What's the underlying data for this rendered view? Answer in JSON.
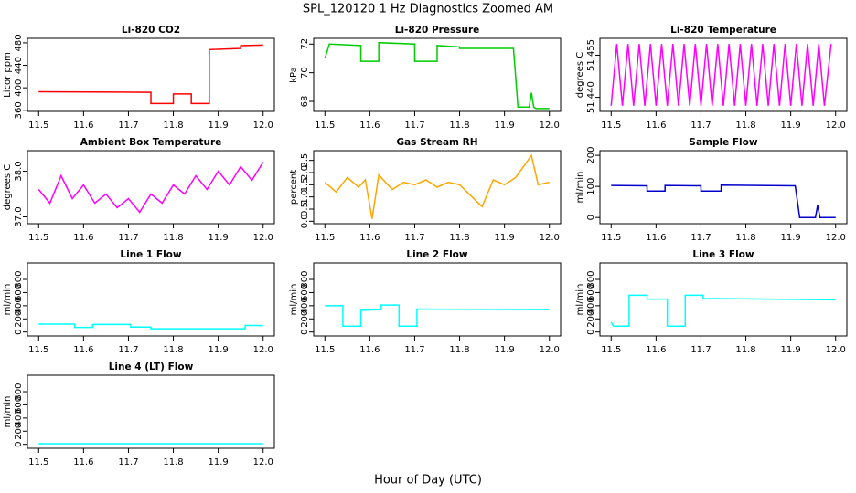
{
  "title": "SPL_120120  1 Hz Diagnostics Zoomed AM",
  "xlabel": "Hour of Day (UTC)",
  "chart_data": [
    {
      "type": "line",
      "title": "Li-820 CO2",
      "ylabel": "Licor ppm",
      "color": "#ff0000",
      "x": [
        11.5,
        11.75,
        11.75,
        11.8,
        11.8,
        11.84,
        11.84,
        11.88,
        11.88,
        11.95,
        11.95,
        12.0
      ],
      "values": [
        393,
        392,
        372,
        372,
        389,
        389,
        372,
        372,
        468,
        470,
        475,
        476
      ],
      "xlim": [
        11.475,
        12.025
      ],
      "xticks": [
        11.5,
        11.6,
        11.7,
        11.8,
        11.9,
        {
          "value": 12,
          "label": "12.0"
        }
      ],
      "ylim": [
        358,
        488
      ],
      "yticks": [
        360,
        400,
        440,
        480
      ]
    },
    {
      "type": "line",
      "title": "Li-820 Pressure",
      "ylabel": "kPa",
      "color": "#00cc00",
      "x": [
        11.5,
        11.51,
        11.58,
        11.58,
        11.62,
        11.62,
        11.7,
        11.7,
        11.75,
        11.75,
        11.8,
        11.8,
        11.92,
        11.93,
        11.955,
        11.96,
        11.965,
        11.97,
        12.0
      ],
      "values": [
        71.0,
        72.0,
        71.9,
        70.8,
        70.8,
        72.1,
        72.0,
        70.8,
        70.8,
        71.9,
        71.8,
        71.7,
        71.7,
        67.6,
        67.6,
        68.6,
        67.6,
        67.5,
        67.5
      ],
      "xlim": [
        11.475,
        12.025
      ],
      "xticks": [
        11.5,
        11.6,
        11.7,
        11.8,
        11.9,
        {
          "value": 12,
          "label": "12.0"
        }
      ],
      "ylim": [
        67.3,
        72.4
      ],
      "yticks": [
        68,
        70,
        72
      ]
    },
    {
      "type": "line",
      "title": "Li-820 Temperature",
      "ylabel": "degrees C",
      "color": "#ff00ff",
      "x": [
        11.5,
        11.5125,
        11.525,
        11.5375,
        11.55,
        11.5625,
        11.575,
        11.5875,
        11.6,
        11.6125,
        11.625,
        11.6375,
        11.65,
        11.6625,
        11.675,
        11.6875,
        11.7,
        11.7125,
        11.725,
        11.7375,
        11.75,
        11.7625,
        11.775,
        11.7875,
        11.8,
        11.8125,
        11.825,
        11.8375,
        11.85,
        11.8625,
        11.875,
        11.8875,
        11.9,
        11.9125,
        11.925,
        11.9375,
        11.95,
        11.9625,
        11.975,
        11.99
      ],
      "values": [
        51.437,
        51.459,
        51.437,
        51.459,
        51.437,
        51.459,
        51.437,
        51.459,
        51.437,
        51.459,
        51.437,
        51.459,
        51.437,
        51.459,
        51.437,
        51.459,
        51.437,
        51.459,
        51.437,
        51.459,
        51.437,
        51.459,
        51.437,
        51.459,
        51.437,
        51.459,
        51.437,
        51.459,
        51.437,
        51.459,
        51.437,
        51.459,
        51.437,
        51.459,
        51.437,
        51.459,
        51.437,
        51.459,
        51.437,
        51.459
      ],
      "xlim": [
        11.475,
        12.025
      ],
      "xticks": [
        11.5,
        11.6,
        11.7,
        11.8,
        11.9,
        {
          "value": 12,
          "label": "12.0"
        }
      ],
      "ylim": [
        51.435,
        51.461
      ],
      "yticks": [
        {
          "value": 51.44,
          "label": "51.440"
        },
        51.455
      ]
    },
    {
      "type": "line",
      "title": "Ambient Box Temperature",
      "ylabel": "degrees C",
      "color": "#ff00ff",
      "x": [
        11.5,
        11.525,
        11.55,
        11.575,
        11.6,
        11.625,
        11.65,
        11.675,
        11.7,
        11.725,
        11.75,
        11.775,
        11.8,
        11.825,
        11.85,
        11.875,
        11.9,
        11.925,
        11.95,
        11.975,
        12.0
      ],
      "values": [
        37.6,
        37.3,
        37.9,
        37.4,
        37.7,
        37.3,
        37.5,
        37.2,
        37.4,
        37.1,
        37.5,
        37.3,
        37.7,
        37.5,
        37.9,
        37.6,
        38.0,
        37.7,
        38.1,
        37.8,
        38.2
      ],
      "xlim": [
        11.475,
        12.025
      ],
      "xticks": [
        11.5,
        11.6,
        11.7,
        11.8,
        11.9,
        {
          "value": 12,
          "label": "12.0"
        }
      ],
      "ylim": [
        36.85,
        38.45
      ],
      "yticks": [
        {
          "value": 37,
          "label": "37.0"
        },
        {
          "value": 38,
          "label": "38.0"
        }
      ]
    },
    {
      "type": "line",
      "title": "Gas Stream RH",
      "ylabel": "percent",
      "color": "#ffa500",
      "x": [
        11.5,
        11.525,
        11.55,
        11.575,
        11.59,
        11.605,
        11.62,
        11.65,
        11.675,
        11.7,
        11.725,
        11.75,
        11.775,
        11.8,
        11.85,
        11.875,
        11.9,
        11.925,
        11.96,
        11.975,
        12.0
      ],
      "values": [
        1.6,
        1.2,
        1.8,
        1.4,
        1.7,
        0.1,
        1.9,
        1.3,
        1.6,
        1.5,
        1.7,
        1.4,
        1.6,
        1.5,
        0.6,
        1.7,
        1.5,
        1.8,
        2.7,
        1.5,
        1.6
      ],
      "xlim": [
        11.475,
        12.025
      ],
      "xticks": [
        11.5,
        11.6,
        11.7,
        11.8,
        11.9,
        {
          "value": 12,
          "label": "12.0"
        }
      ],
      "ylim": [
        -0.1,
        2.9
      ],
      "yticks": [
        {
          "value": 0,
          "label": "0.0"
        },
        0.5,
        {
          "value": 1,
          "label": "1.0"
        },
        1.5,
        {
          "value": 2,
          "label": "2.0"
        },
        2.5
      ]
    },
    {
      "type": "line",
      "title": "Sample Flow",
      "ylabel": "ml/min",
      "color": "#0000cc",
      "x": [
        11.5,
        11.58,
        11.58,
        11.62,
        11.62,
        11.7,
        11.7,
        11.745,
        11.745,
        11.91,
        11.92,
        11.955,
        11.96,
        11.965,
        12.0
      ],
      "values": [
        103,
        102,
        85,
        85,
        103,
        102,
        85,
        85,
        104,
        102,
        0,
        0,
        40,
        0,
        0
      ],
      "xlim": [
        11.475,
        12.025
      ],
      "xticks": [
        11.5,
        11.6,
        11.7,
        11.8,
        11.9,
        {
          "value": 12,
          "label": "12.0"
        }
      ],
      "ylim": [
        -20,
        215
      ],
      "yticks": [
        0,
        100,
        200
      ]
    },
    {
      "type": "line",
      "title": "Line 1 Flow",
      "ylabel": "ml/min",
      "color": "#00ffff",
      "x": [
        11.5,
        11.58,
        11.58,
        11.62,
        11.62,
        11.705,
        11.705,
        11.75,
        11.75,
        11.96,
        11.96,
        12.0
      ],
      "values": [
        120,
        120,
        70,
        70,
        115,
        115,
        75,
        75,
        50,
        50,
        100,
        100
      ],
      "xlim": [
        11.475,
        12.025
      ],
      "xticks": [
        11.5,
        11.6,
        11.7,
        11.8,
        11.9,
        {
          "value": 12,
          "label": "12.0"
        }
      ],
      "ylim": [
        -60,
        1050
      ],
      "yticks": [
        0,
        200,
        400,
        600,
        800
      ]
    },
    {
      "type": "line",
      "title": "Line 2 Flow",
      "ylabel": "ml/min",
      "color": "#00ffff",
      "x": [
        11.5,
        11.54,
        11.54,
        11.58,
        11.58,
        11.625,
        11.625,
        11.665,
        11.665,
        11.705,
        11.705,
        12.0
      ],
      "values": [
        400,
        400,
        90,
        90,
        330,
        340,
        410,
        410,
        90,
        90,
        350,
        340
      ],
      "xlim": [
        11.475,
        12.025
      ],
      "xticks": [
        11.5,
        11.6,
        11.7,
        11.8,
        11.9,
        {
          "value": 12,
          "label": "12.0"
        }
      ],
      "ylim": [
        -60,
        1050
      ],
      "yticks": [
        0,
        200,
        400,
        600,
        800
      ]
    },
    {
      "type": "line",
      "title": "Line 3 Flow",
      "ylabel": "ml/min",
      "color": "#00ffff",
      "x": [
        11.5,
        11.505,
        11.54,
        11.54,
        11.58,
        11.58,
        11.625,
        11.625,
        11.665,
        11.665,
        11.705,
        11.705,
        12.0
      ],
      "values": [
        150,
        90,
        90,
        560,
        560,
        500,
        500,
        90,
        90,
        560,
        560,
        510,
        490
      ],
      "xlim": [
        11.475,
        12.025
      ],
      "xticks": [
        11.5,
        11.6,
        11.7,
        11.8,
        11.9,
        {
          "value": 12,
          "label": "12.0"
        }
      ],
      "ylim": [
        -60,
        1050
      ],
      "yticks": [
        0,
        200,
        400,
        600,
        800
      ]
    },
    {
      "type": "line",
      "title": "Line 4 (LT) Flow",
      "ylabel": "ml/min",
      "color": "#00ffff",
      "x": [
        11.5,
        12.0
      ],
      "values": [
        10,
        10
      ],
      "xlim": [
        11.475,
        12.025
      ],
      "xticks": [
        11.5,
        11.6,
        11.7,
        11.8,
        11.9,
        {
          "value": 12,
          "label": "12.0"
        }
      ],
      "ylim": [
        -60,
        1050
      ],
      "yticks": [
        0,
        200,
        400,
        600,
        800
      ]
    }
  ]
}
